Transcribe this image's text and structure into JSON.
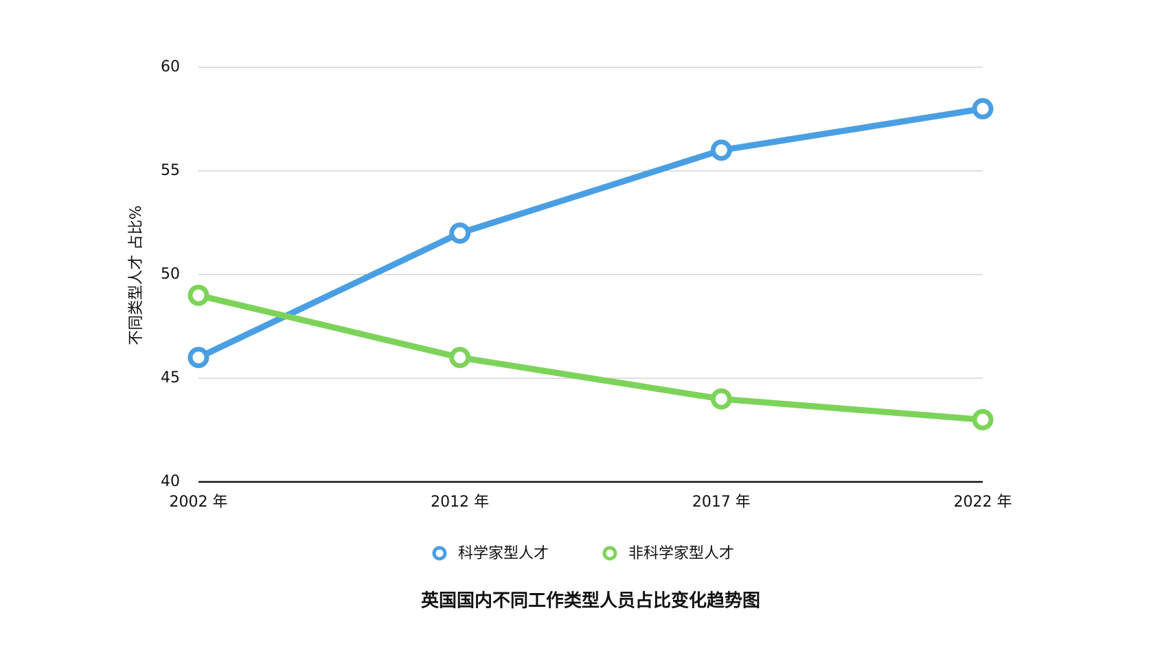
{
  "chart_data": {
    "type": "line",
    "title": "英国国内不同工作类型人员占比变化趋势图",
    "y_label": "不同类型人才 占比%",
    "categories": [
      "2002 年",
      "2012 年",
      "2017 年",
      "2022 年"
    ],
    "series": [
      {
        "name": "科学家型人才",
        "color": "#4a9fe3",
        "values": [
          46,
          52,
          56,
          58
        ]
      },
      {
        "name": "非科学家型人才",
        "color": "#7dd35a",
        "values": [
          49,
          46,
          44,
          43
        ]
      }
    ],
    "ylim": [
      40,
      60
    ],
    "yticks": [
      40,
      45,
      50,
      55,
      60
    ],
    "grid": true,
    "legend": "bottom"
  }
}
